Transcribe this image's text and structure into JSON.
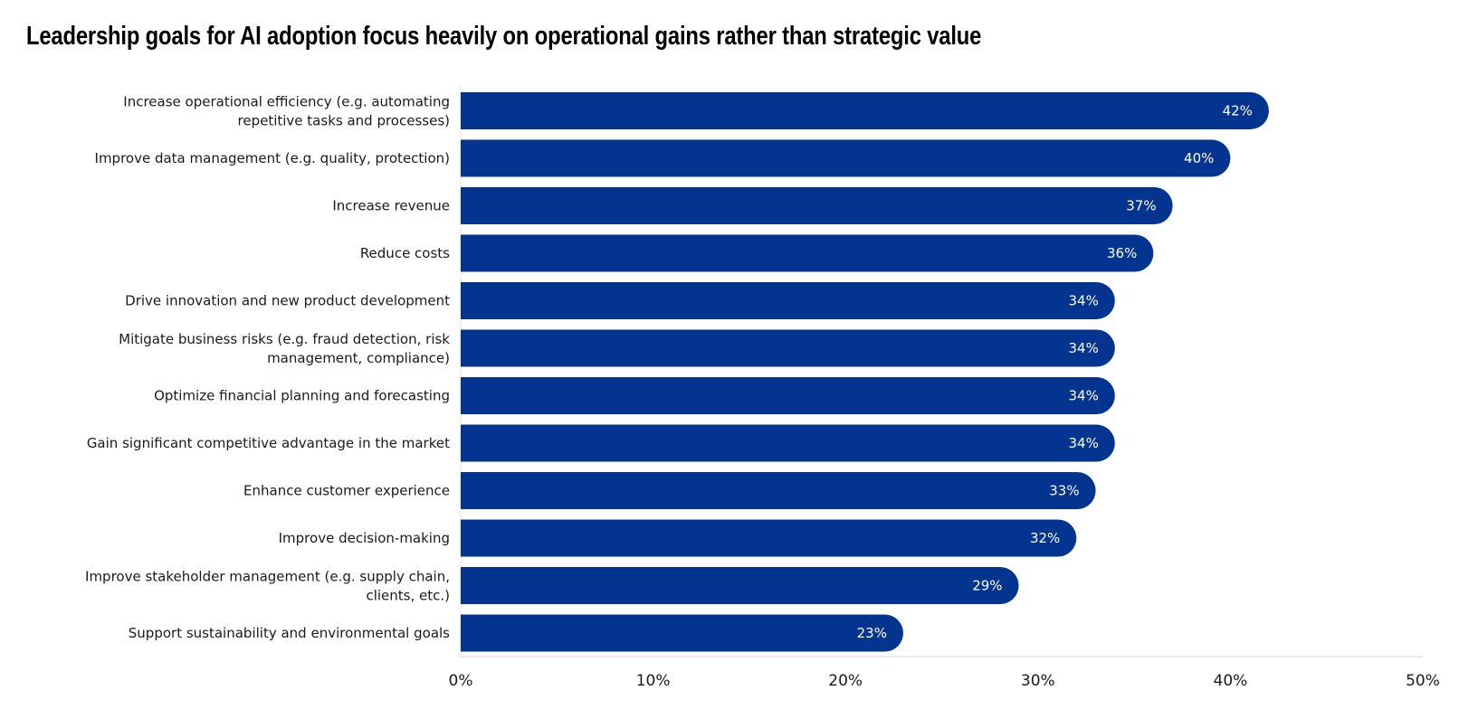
{
  "chart_data": {
    "type": "bar",
    "orientation": "horizontal",
    "title": "Leadership goals for AI adoption focus heavily on operational gains rather than strategic value",
    "categories": [
      [
        "Increase operational efficiency (e.g. automating",
        "repetitive tasks and processes)"
      ],
      [
        "Improve data management (e.g. quality, protection)"
      ],
      [
        "Increase revenue"
      ],
      [
        "Reduce costs"
      ],
      [
        "Drive innovation and new product development"
      ],
      [
        "Mitigate business risks (e.g. fraud detection, risk",
        "management, compliance)"
      ],
      [
        "Optimize financial planning and forecasting"
      ],
      [
        "Gain significant competitive advantage in the market"
      ],
      [
        "Enhance customer experience"
      ],
      [
        "Improve decision-making"
      ],
      [
        "Improve stakeholder management (e.g. supply chain,",
        "clients, etc.)"
      ],
      [
        "Support sustainability and environmental goals"
      ]
    ],
    "values": [
      42,
      40,
      37,
      36,
      34,
      34,
      34,
      34,
      33,
      32,
      29,
      23
    ],
    "data_labels": [
      "42%",
      "40%",
      "37%",
      "36%",
      "34%",
      "34%",
      "34%",
      "34%",
      "33%",
      "32%",
      "29%",
      "23%"
    ],
    "xlim": [
      0,
      50
    ],
    "xticks": [
      0,
      10,
      20,
      30,
      40,
      50
    ],
    "xtick_labels": [
      "0%",
      "10%",
      "20%",
      "30%",
      "40%",
      "50%"
    ],
    "xlabel": "",
    "ylabel": "",
    "grid": false,
    "bar_color": "#03348f"
  }
}
